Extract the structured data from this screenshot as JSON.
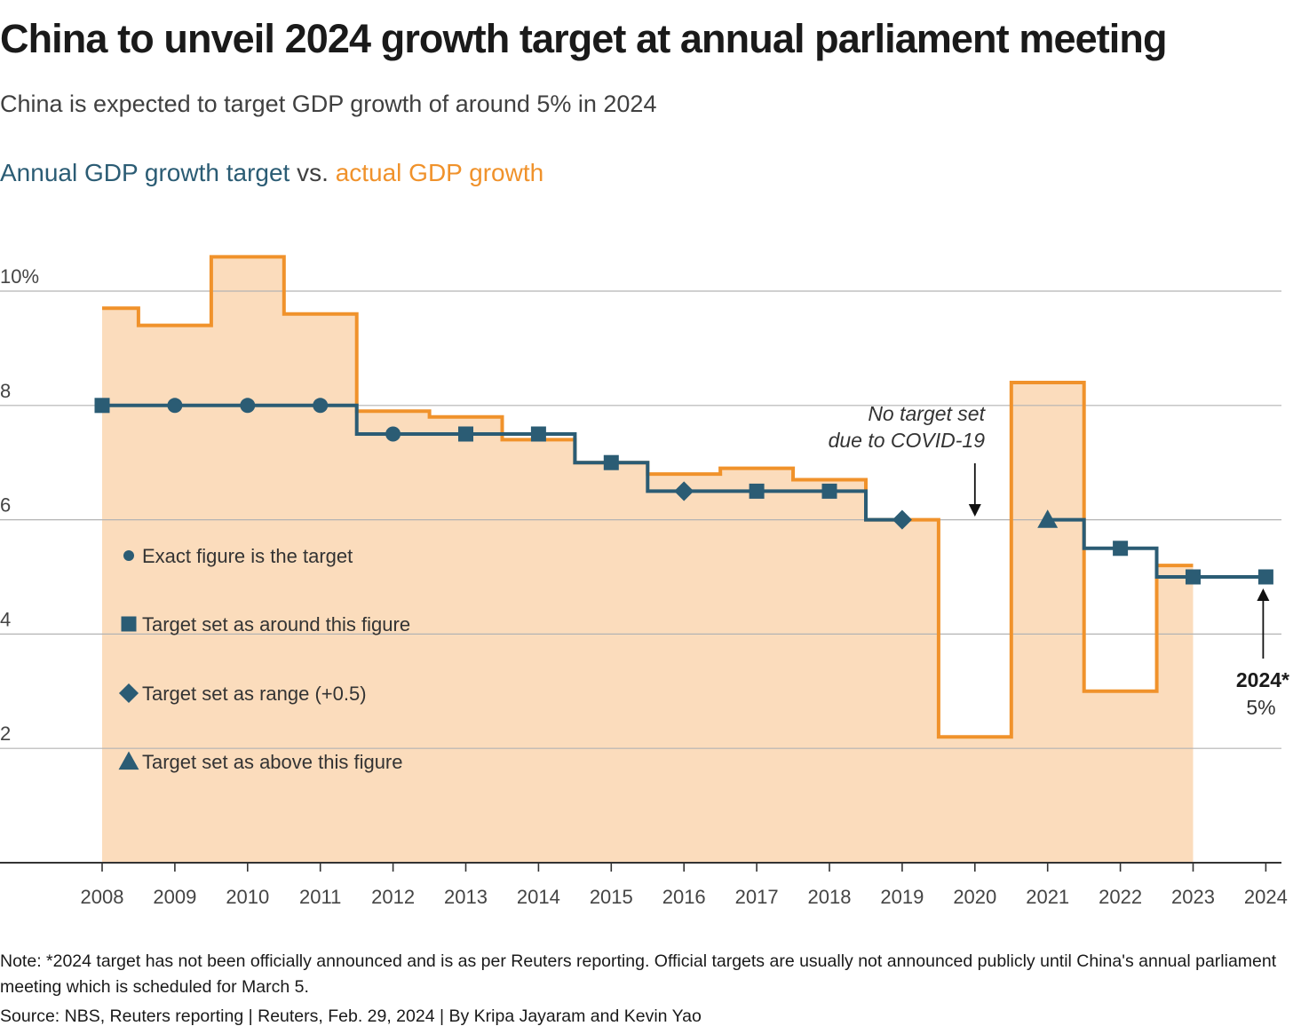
{
  "title": "China to unveil 2024 growth target at annual parliament meeting",
  "subtitle": "China is expected to target GDP growth of around 5% in 2024",
  "series_heading": {
    "target": "Annual GDP growth target",
    "vs": " vs. ",
    "actual": "actual GDP growth"
  },
  "colors": {
    "target": "#2b5c74",
    "actual": "#f0922b",
    "area": "#fbdcbc",
    "grid": "#b3b3b3",
    "axis": "#333333"
  },
  "chart_data": {
    "type": "line",
    "title": "Annual GDP growth target vs. actual GDP growth",
    "xlabel": "",
    "ylabel": "",
    "ylim": [
      0,
      10
    ],
    "y_ticks": [
      "10%",
      "8",
      "6",
      "4",
      "2"
    ],
    "y_tick_values": [
      10,
      8,
      6,
      4,
      2
    ],
    "x": [
      "2008",
      "2009",
      "2010",
      "2011",
      "2012",
      "2013",
      "2014",
      "2015",
      "2016",
      "2017",
      "2018",
      "2019",
      "2020",
      "2021",
      "2022",
      "2023",
      "2024"
    ],
    "series": [
      {
        "name": "actual GDP growth",
        "style": "step-area",
        "values": [
          9.7,
          9.4,
          10.6,
          9.6,
          7.9,
          7.8,
          7.4,
          7.0,
          6.8,
          6.9,
          6.7,
          6.0,
          2.2,
          8.4,
          3.0,
          5.2,
          null
        ]
      },
      {
        "name": "Annual GDP growth target",
        "style": "step-line",
        "values": [
          8,
          8,
          8,
          8,
          7.5,
          7.5,
          7.5,
          7.0,
          6.5,
          6.5,
          6.5,
          6.0,
          null,
          6.0,
          5.5,
          5.0,
          5.0
        ],
        "markers": [
          "square",
          "circle",
          "circle",
          "circle",
          "circle",
          "square",
          "square",
          "square",
          "diamond",
          "square",
          "square",
          "diamond",
          null,
          "triangle",
          "square",
          "square",
          "square"
        ]
      }
    ],
    "legend": [
      {
        "marker": "circle",
        "label": "Exact figure is the target"
      },
      {
        "marker": "square",
        "label": "Target set as around this figure"
      },
      {
        "marker": "diamond",
        "label": "Target set as range (+0.5)"
      },
      {
        "marker": "triangle",
        "label": "Target set as above this figure"
      }
    ],
    "annotations": {
      "no_target": [
        "No target set",
        "due to COVID-19"
      ],
      "final_year": "2024*",
      "final_value": "5%"
    }
  },
  "footer": {
    "note": "Note: *2024 target has not been officially announced and is as per Reuters reporting. Official targets are usually not announced publicly until China's annual parliament meeting which is scheduled for March 5.",
    "source": "Source: NBS, Reuters reporting | Reuters, Feb. 29, 2024 | By Kripa Jayaram and Kevin Yao"
  }
}
